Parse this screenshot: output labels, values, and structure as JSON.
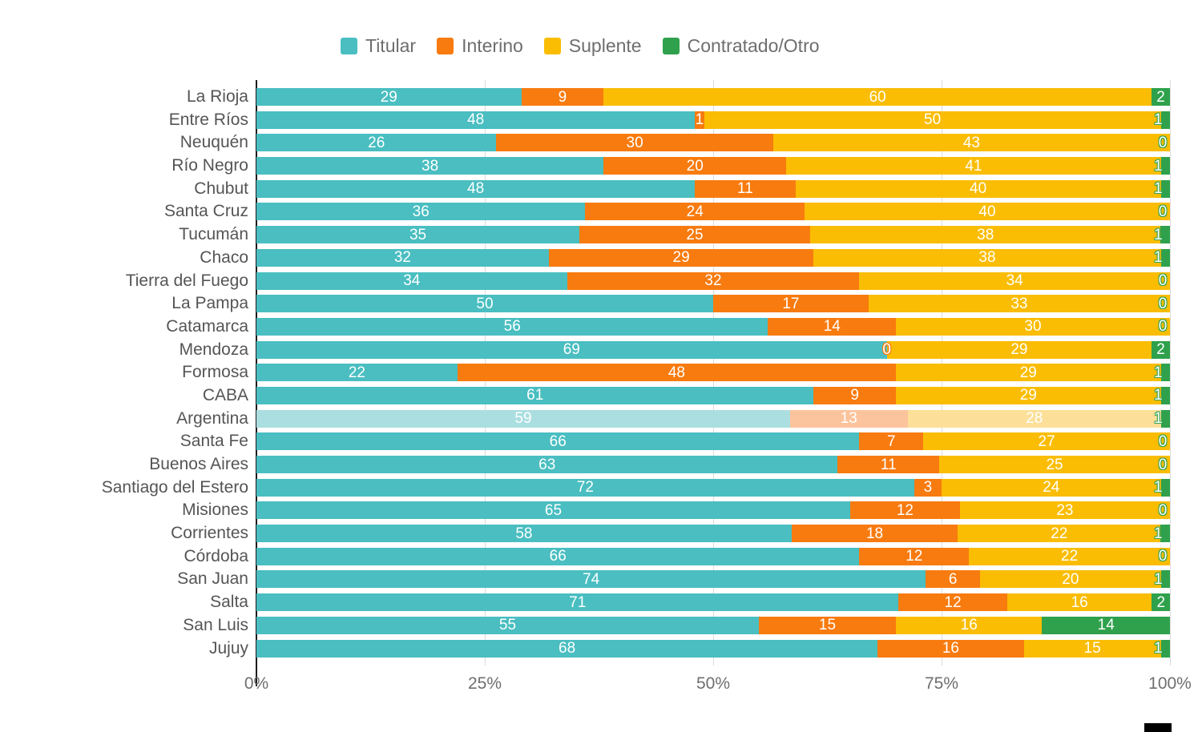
{
  "legend": {
    "items": [
      {
        "label": "Titular",
        "color": "#4abec1"
      },
      {
        "label": "Interino",
        "color": "#f87b0f"
      },
      {
        "label": "Suplente",
        "color": "#fabd03"
      },
      {
        "label": "Contratado/Otro",
        "color": "#2fa14c"
      }
    ]
  },
  "chart_data": {
    "type": "bar",
    "orientation": "horizontal",
    "stacked": true,
    "units": "percent",
    "xlim": [
      0,
      100
    ],
    "grid": true,
    "legend_position": "top",
    "x_ticks": [
      "0%",
      "25%",
      "50%",
      "75%",
      "100%"
    ],
    "series_names": [
      "Titular",
      "Interino",
      "Suplente",
      "Contratado/Otro"
    ],
    "series_colors": [
      "#4abec1",
      "#f87b0f",
      "#fabd03",
      "#2fa14c"
    ],
    "highlight_colors": [
      "#abdee0",
      "#fcc49c",
      "#fcdf99",
      "#2fa14c"
    ],
    "highlighted_category": "Argentina",
    "rows": [
      {
        "label": "La Rioja",
        "values": [
          29,
          9,
          60,
          2
        ],
        "highlight": false
      },
      {
        "label": "Entre Ríos",
        "values": [
          48,
          1,
          50,
          1
        ],
        "highlight": false
      },
      {
        "label": "Neuquén",
        "values": [
          26,
          30,
          43,
          0
        ],
        "highlight": false
      },
      {
        "label": "Río Negro",
        "values": [
          38,
          20,
          41,
          1
        ],
        "highlight": false
      },
      {
        "label": "Chubut",
        "values": [
          48,
          11,
          40,
          1
        ],
        "highlight": false
      },
      {
        "label": "Santa Cruz",
        "values": [
          36,
          24,
          40,
          0
        ],
        "highlight": false
      },
      {
        "label": "Tucumán",
        "values": [
          35,
          25,
          38,
          1
        ],
        "highlight": false
      },
      {
        "label": "Chaco",
        "values": [
          32,
          29,
          38,
          1
        ],
        "highlight": false
      },
      {
        "label": "Tierra del Fuego",
        "values": [
          34,
          32,
          34,
          0
        ],
        "highlight": false
      },
      {
        "label": "La Pampa",
        "values": [
          50,
          17,
          33,
          0
        ],
        "highlight": false
      },
      {
        "label": "Catamarca",
        "values": [
          56,
          14,
          30,
          0
        ],
        "highlight": false
      },
      {
        "label": "Mendoza",
        "values": [
          69,
          0,
          29,
          2
        ],
        "highlight": false
      },
      {
        "label": "Formosa",
        "values": [
          22,
          48,
          29,
          1
        ],
        "highlight": false
      },
      {
        "label": "CABA",
        "values": [
          61,
          9,
          29,
          1
        ],
        "highlight": false
      },
      {
        "label": "Argentina",
        "values": [
          59,
          13,
          28,
          1
        ],
        "highlight": true
      },
      {
        "label": "Santa Fe",
        "values": [
          66,
          7,
          27,
          0
        ],
        "highlight": false
      },
      {
        "label": "Buenos Aires",
        "values": [
          63,
          11,
          25,
          0
        ],
        "highlight": false
      },
      {
        "label": "Santiago del Estero",
        "values": [
          72,
          3,
          24,
          1
        ],
        "highlight": false
      },
      {
        "label": "Misiones",
        "values": [
          65,
          12,
          23,
          0
        ],
        "highlight": false
      },
      {
        "label": "Corrientes",
        "values": [
          58,
          18,
          22,
          1
        ],
        "highlight": false
      },
      {
        "label": "Córdoba",
        "values": [
          66,
          12,
          22,
          0
        ],
        "highlight": false
      },
      {
        "label": "San Juan",
        "values": [
          74,
          6,
          20,
          1
        ],
        "highlight": false
      },
      {
        "label": "Salta",
        "values": [
          71,
          12,
          16,
          2
        ],
        "highlight": false
      },
      {
        "label": "San Luis",
        "values": [
          55,
          15,
          16,
          14
        ],
        "highlight": false
      },
      {
        "label": "Jujuy",
        "values": [
          68,
          16,
          15,
          1
        ],
        "highlight": false
      }
    ]
  }
}
